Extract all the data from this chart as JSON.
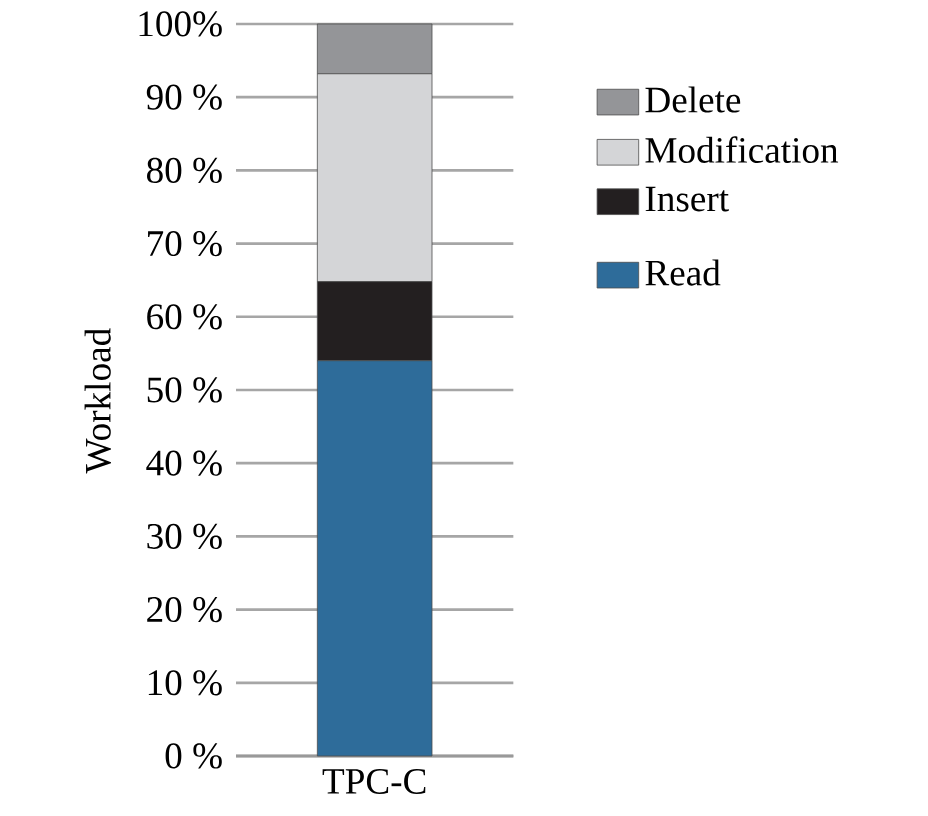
{
  "chart_data": {
    "type": "bar",
    "stacked": true,
    "categories": [
      "TPC-C"
    ],
    "ylabel": "Workload",
    "series": [
      {
        "name": "Read",
        "color": "#2e6c9a",
        "values": [
          54
        ]
      },
      {
        "name": "Insert",
        "color": "#231f20",
        "values": [
          10.8
        ]
      },
      {
        "name": "Modification",
        "color": "#d4d5d7",
        "values": [
          28.4
        ]
      },
      {
        "name": "Delete",
        "color": "#949598",
        "values": [
          6.8
        ]
      }
    ],
    "ylim": [
      0,
      100
    ],
    "yticks": [
      {
        "value": 0,
        "label": "0 %"
      },
      {
        "value": 10,
        "label": "10 %"
      },
      {
        "value": 20,
        "label": "20 %"
      },
      {
        "value": 30,
        "label": "30 %"
      },
      {
        "value": 40,
        "label": "40 %"
      },
      {
        "value": 50,
        "label": "50 %"
      },
      {
        "value": 60,
        "label": "60 %"
      },
      {
        "value": 70,
        "label": "70 %"
      },
      {
        "value": 80,
        "label": "80 %"
      },
      {
        "value": 90,
        "label": "90 %"
      },
      {
        "value": 100,
        "label": "100%"
      }
    ],
    "grid": "y",
    "legend": "right"
  }
}
